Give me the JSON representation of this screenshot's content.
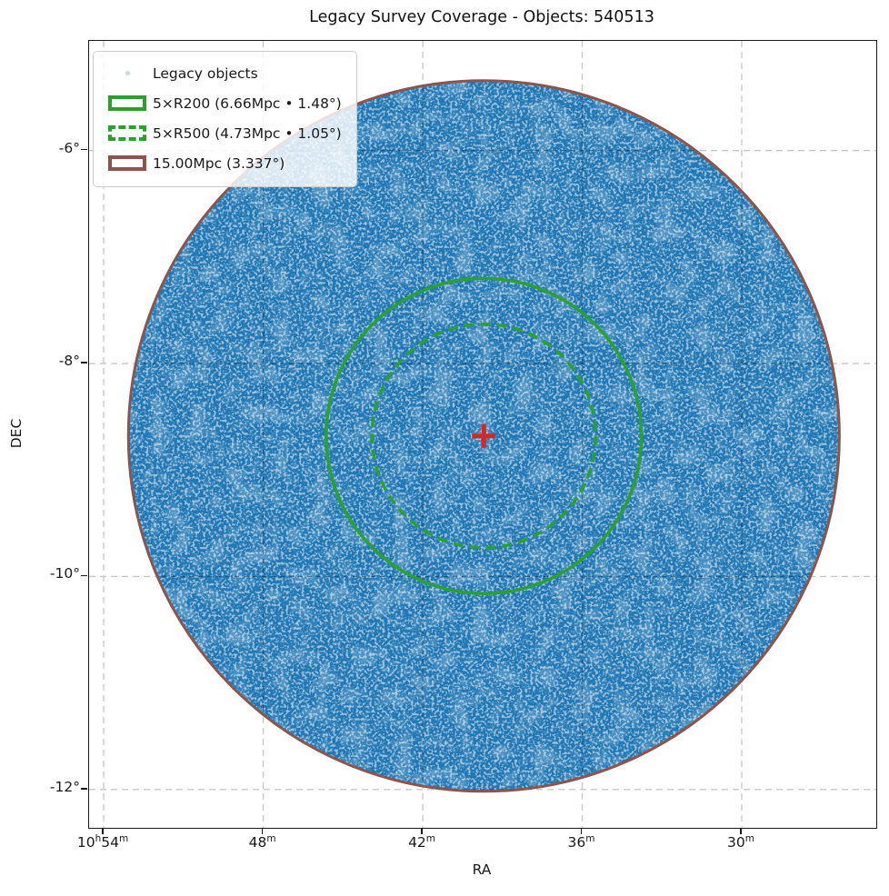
{
  "title": "Legacy Survey Coverage - Objects: 540513",
  "axes": {
    "xlabel": "RA",
    "ylabel": "DEC",
    "x_ticks": [
      {
        "value": 54,
        "hour": "10",
        "hour_unit": "h",
        "minute": "54",
        "minute_unit": "m"
      },
      {
        "value": 48,
        "minute": "48",
        "minute_unit": "m"
      },
      {
        "value": 42,
        "minute": "42",
        "minute_unit": "m"
      },
      {
        "value": 36,
        "minute": "36",
        "minute_unit": "m"
      },
      {
        "value": 30,
        "minute": "30",
        "minute_unit": "m"
      }
    ],
    "y_ticks": [
      {
        "value": -6,
        "label": "-6°"
      },
      {
        "value": -8,
        "label": "-8°"
      },
      {
        "value": -10,
        "label": "-10°"
      },
      {
        "value": -12,
        "label": "-12°"
      }
    ],
    "x_range_ra_minutes_past_10h": [
      54.55,
      24.94
    ],
    "y_range_deg": [
      -4.97,
      -12.36
    ],
    "grid": true
  },
  "legend": {
    "items": [
      {
        "label": "Legacy objects",
        "marker": "dot"
      },
      {
        "label": "5×R200 (6.66Mpc • 1.48°)",
        "marker": "solid-green-rect"
      },
      {
        "label": "5×R500 (4.73Mpc • 1.05°)",
        "marker": "dashed-green-rect"
      },
      {
        "label": "15.00Mpc (3.337°)",
        "marker": "solid-brown-rect"
      }
    ],
    "position": "upper-left"
  },
  "colors": {
    "scatter_blue": "#1f77b4",
    "overlay_green": "#2ca02c",
    "overlay_brown": "#8c544a",
    "center_red": "#d62728",
    "grid_gray": "#c7c7c7",
    "grid_over_disk": "#0d2b45"
  },
  "chart_data": {
    "type": "scatter",
    "title": "Legacy Survey Coverage - Objects: 540513",
    "xlabel": "RA",
    "ylabel": "DEC",
    "n_objects": 540513,
    "points_summary": "540513 Legacy survey objects uniformly filling a circular sky footprint of radius 3.337 deg",
    "center": {
      "ra_label": "10h39.7m",
      "ra_minutes_past_10h": 39.7,
      "dec_deg": -8.68,
      "marker": "red-plus"
    },
    "coverage_disk": {
      "radius_deg": 3.337,
      "fill": "#1f77b4"
    },
    "circles": [
      {
        "name": "5xR200",
        "mpc": 6.66,
        "radius_deg": 1.48,
        "style": "solid",
        "color": "#2ca02c"
      },
      {
        "name": "5xR500",
        "mpc": 4.73,
        "radius_deg": 1.05,
        "style": "dashed",
        "color": "#2ca02c"
      },
      {
        "name": "15Mpc",
        "mpc": 15.0,
        "radius_deg": 3.337,
        "style": "solid",
        "color": "#8c544a"
      }
    ],
    "xlim_ra_minutes_past_10h": [
      54.55,
      24.94
    ],
    "ylim_deg": [
      -12.36,
      -4.97
    ],
    "x_axis_inverted": true,
    "legend_position": "upper-left",
    "grid": "dashed"
  }
}
